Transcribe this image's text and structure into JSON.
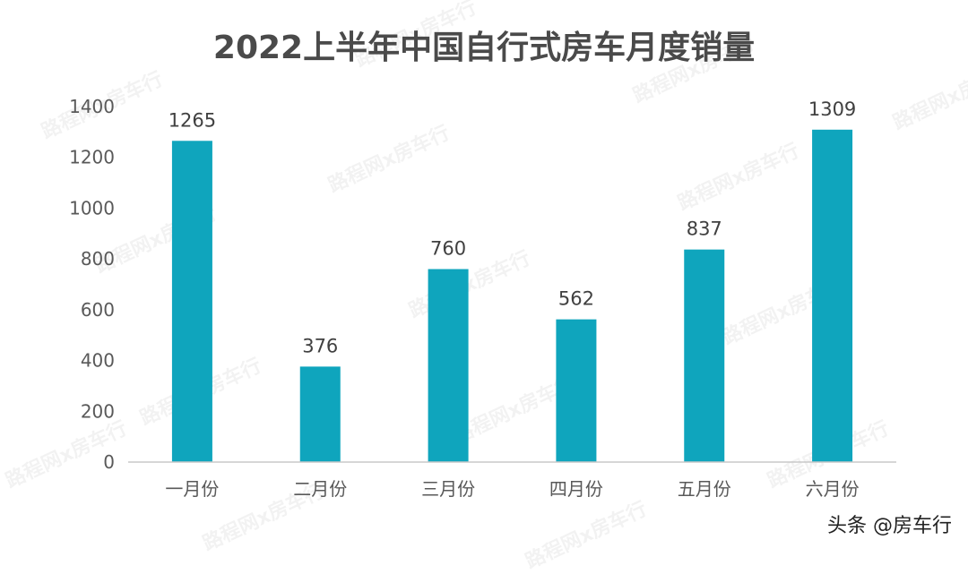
{
  "watermark": "路程网x房车行",
  "credit": "头条 @房车行",
  "colors": {
    "bar": "#0fa5bd",
    "axis": "#c8c8c8",
    "text": "#595959",
    "title": "#4a4a4a"
  },
  "chart_data": {
    "type": "bar",
    "title": "2022上半年中国自行式房车月度销量",
    "categories": [
      "一月份",
      "二月份",
      "三月份",
      "四月份",
      "五月份",
      "六月份"
    ],
    "values": [
      1265,
      376,
      760,
      562,
      837,
      1309
    ],
    "yticks": [
      0,
      200,
      400,
      600,
      800,
      1000,
      1200,
      1400
    ],
    "ylim": [
      0,
      1400
    ],
    "grid": false,
    "legend": "none",
    "data_labels": true
  }
}
